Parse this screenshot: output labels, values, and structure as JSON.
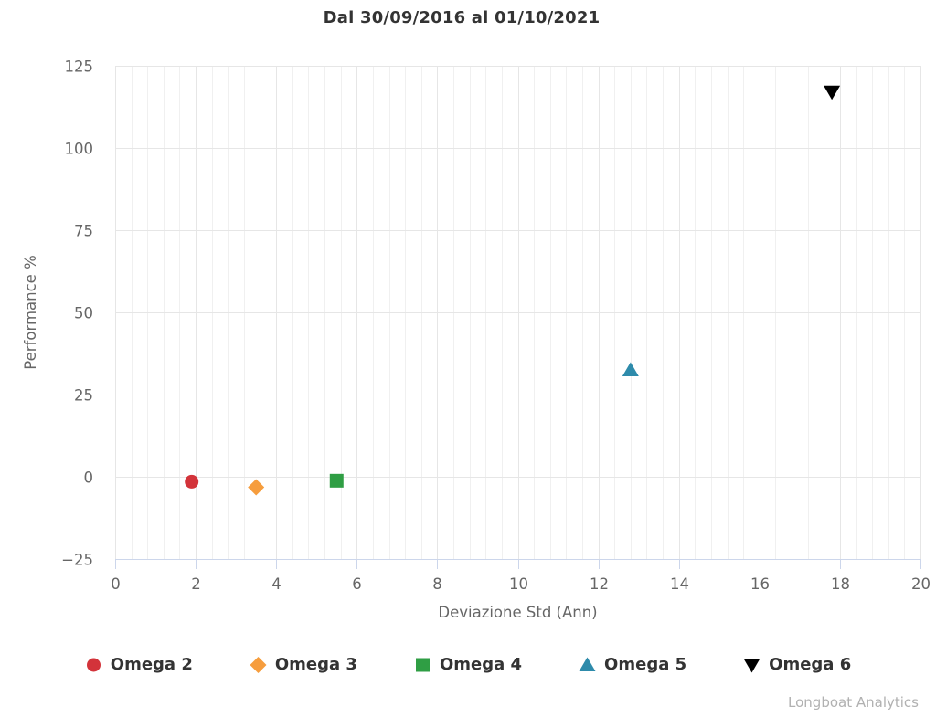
{
  "chart_data": {
    "type": "scatter",
    "title": "Dal 30/09/2016 al 01/10/2021",
    "xlabel": "Deviazione Std (Ann)",
    "ylabel": "Performance %",
    "xlim": [
      0,
      20
    ],
    "xtick_step": 2,
    "x_minor_step": 0.4,
    "ylim": [
      -25,
      125
    ],
    "ytick_step": 25,
    "grid": true,
    "legend_position": "bottom",
    "series": [
      {
        "name": "Omega 2",
        "marker": "circle",
        "color": "#d3333a",
        "points": [
          [
            1.9,
            -1.5
          ]
        ]
      },
      {
        "name": "Omega 3",
        "marker": "diamond",
        "color": "#f69d3d",
        "points": [
          [
            3.5,
            -3.2
          ]
        ]
      },
      {
        "name": "Omega 4",
        "marker": "square",
        "color": "#2f9e44",
        "points": [
          [
            5.5,
            -1.2
          ]
        ]
      },
      {
        "name": "Omega 5",
        "marker": "triangle-up",
        "color": "#2e8bab",
        "points": [
          [
            12.8,
            32.5
          ]
        ]
      },
      {
        "name": "Omega 6",
        "marker": "triangle-down",
        "color": "#000000",
        "points": [
          [
            17.8,
            117
          ]
        ]
      }
    ],
    "credit": "Longboat Analytics",
    "axis_style": {
      "axis_line_color": "#ccd6eb",
      "tick_label_color": "#666666",
      "axis_title_color": "#666666",
      "grid_major_color": "#e6e6e6",
      "grid_minor_color": "#f0f0f0"
    }
  }
}
